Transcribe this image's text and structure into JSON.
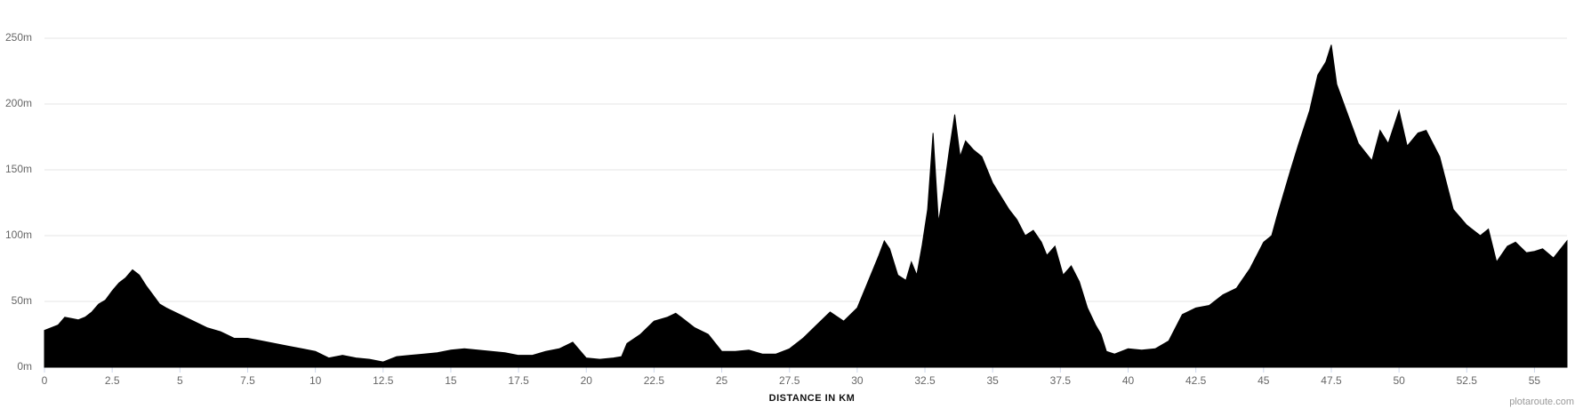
{
  "chart_data": {
    "type": "area",
    "x_label": "DISTANCE IN KM",
    "credit": "plotaroute.com",
    "color": "#000000",
    "grid": true,
    "x": [
      0,
      0.5,
      0.75,
      1,
      1.25,
      1.5,
      1.75,
      2,
      2.25,
      2.5,
      2.75,
      3,
      3.25,
      3.5,
      3.75,
      4,
      4.25,
      4.5,
      5,
      5.5,
      6,
      6.5,
      7,
      7.5,
      8,
      8.5,
      9,
      9.5,
      10,
      10.5,
      11,
      11.5,
      12,
      12.5,
      13,
      13.5,
      14,
      14.5,
      15,
      15.5,
      16,
      16.5,
      17,
      17.5,
      18,
      18.5,
      19,
      19.5,
      20,
      20.5,
      21,
      21.3,
      21.5,
      22,
      22.5,
      23,
      23.3,
      23.5,
      24,
      24.5,
      25,
      25.5,
      26,
      26.5,
      27,
      27.5,
      28,
      28.5,
      29,
      29.5,
      30,
      30.5,
      30.8,
      31,
      31.2,
      31.5,
      31.8,
      32,
      32.2,
      32.4,
      32.6,
      32.8,
      33,
      33.2,
      33.4,
      33.6,
      33.8,
      34,
      34.3,
      34.6,
      35,
      35.3,
      35.6,
      35.9,
      36.2,
      36.5,
      36.8,
      37,
      37.3,
      37.6,
      37.9,
      38.2,
      38.5,
      38.8,
      39,
      39.2,
      39.5,
      40,
      40.5,
      41,
      41.5,
      42,
      42.5,
      43,
      43.5,
      44,
      44.5,
      45,
      45.3,
      45.5,
      46,
      46.3,
      46.7,
      47,
      47.3,
      47.5,
      47.7,
      48,
      48.5,
      49,
      49.3,
      49.6,
      50,
      50.3,
      50.7,
      51,
      51.5,
      52,
      52.5,
      53,
      53.3,
      53.6,
      54,
      54.3,
      54.7,
      55,
      55.3,
      55.7,
      56.2
    ],
    "values": [
      28,
      32,
      38,
      37,
      36,
      38,
      42,
      48,
      51,
      58,
      64,
      68,
      74,
      70,
      62,
      55,
      48,
      45,
      40,
      35,
      30,
      27,
      22,
      22,
      20,
      18,
      16,
      14,
      12,
      7,
      9,
      7,
      6,
      4,
      8,
      9,
      10,
      11,
      13,
      14,
      13,
      12,
      11,
      9,
      9,
      12,
      14,
      19,
      7,
      6,
      7,
      8,
      18,
      25,
      35,
      38,
      41,
      38,
      30,
      25,
      12,
      12,
      13,
      10,
      10,
      14,
      22,
      32,
      42,
      35,
      45,
      70,
      85,
      96,
      90,
      70,
      66,
      80,
      70,
      93,
      120,
      178,
      110,
      135,
      165,
      192,
      160,
      172,
      165,
      160,
      140,
      130,
      120,
      112,
      100,
      104,
      95,
      85,
      92,
      70,
      77,
      65,
      45,
      32,
      25,
      12,
      10,
      14,
      13,
      14,
      20,
      40,
      45,
      47,
      55,
      60,
      75,
      95,
      100,
      115,
      150,
      170,
      195,
      222,
      232,
      245,
      215,
      198,
      170,
      157,
      180,
      170,
      195,
      168,
      178,
      180,
      160,
      120,
      108,
      100,
      105,
      80,
      92,
      95,
      87,
      88,
      90,
      83,
      96
    ],
    "xlim": [
      0,
      56.2
    ],
    "ylim": [
      0,
      250
    ],
    "xticks": [
      0,
      2.5,
      5,
      7.5,
      10,
      12.5,
      15,
      17.5,
      20,
      22.5,
      25,
      27.5,
      30,
      32.5,
      35,
      37.5,
      40,
      42.5,
      45,
      47.5,
      50,
      52.5,
      55
    ],
    "yticks": [
      {
        "value": 0,
        "label": "0m"
      },
      {
        "value": 50,
        "label": "50m"
      },
      {
        "value": 100,
        "label": "100m"
      },
      {
        "value": 150,
        "label": "150m"
      },
      {
        "value": 200,
        "label": "200m"
      },
      {
        "value": 250,
        "label": "250m"
      }
    ]
  }
}
